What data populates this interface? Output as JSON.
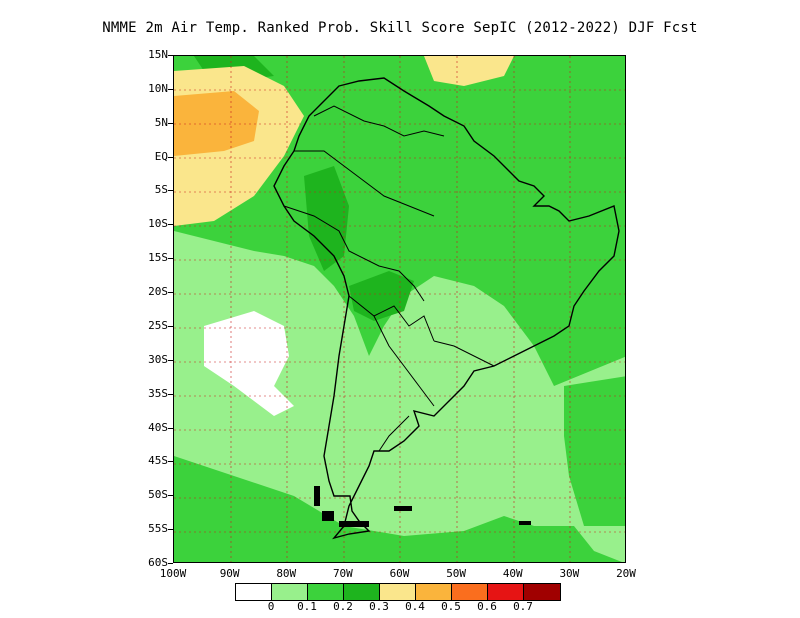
{
  "title": "NMME  2m Air Temp. Ranked Prob. Skill Score SepIC (2012-2022) DJF Fcst",
  "map": {
    "lat_labels": [
      "15N",
      "10N",
      "5N",
      "EQ",
      "5S",
      "10S",
      "15S",
      "20S",
      "25S",
      "30S",
      "35S",
      "40S",
      "45S",
      "50S",
      "55S",
      "60S"
    ],
    "lon_labels": [
      "100W",
      "90W",
      "80W",
      "70W",
      "60W",
      "50W",
      "40W",
      "30W",
      "20W"
    ],
    "lat_range": [
      -60,
      15
    ],
    "lon_range": [
      -100,
      -20
    ],
    "grid": true
  },
  "legend": {
    "colors": [
      "#ffffff",
      "#98f08c",
      "#3cd23c",
      "#1eb41e",
      "#fae68c",
      "#fab43c",
      "#fa6e1e",
      "#e61414",
      "#a00000"
    ],
    "labels": [
      "0",
      "0.1",
      "0.2",
      "0.3",
      "0.4",
      "0.5",
      "0.6",
      "0.7"
    ]
  }
}
